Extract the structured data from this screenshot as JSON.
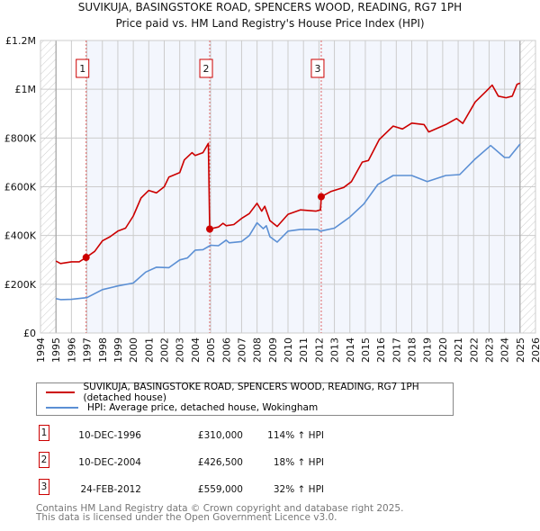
{
  "chart_data": {
    "type": "line",
    "title": "SUVIKUJA, BASINGSTOKE ROAD, SPENCERS WOOD, READING, RG7 1PH",
    "subtitle": "Price paid vs. HM Land Registry's House Price Index (HPI)",
    "xlim": [
      1994,
      2026
    ],
    "ylim": [
      0,
      1200000
    ],
    "x_ticks": [
      "1994",
      "1995",
      "1996",
      "1997",
      "1998",
      "1999",
      "2000",
      "2001",
      "2002",
      "2003",
      "2004",
      "2005",
      "2006",
      "2007",
      "2008",
      "2009",
      "2010",
      "2011",
      "2012",
      "2013",
      "2014",
      "2015",
      "2016",
      "2017",
      "2018",
      "2019",
      "2020",
      "2021",
      "2022",
      "2023",
      "2024",
      "2025",
      "2026"
    ],
    "y_ticks": [
      {
        "value": 0,
        "label": "£0"
      },
      {
        "value": 200000,
        "label": "£200K"
      },
      {
        "value": 400000,
        "label": "£400K"
      },
      {
        "value": 600000,
        "label": "£600K"
      },
      {
        "value": 800000,
        "label": "£800K"
      },
      {
        "value": 1000000,
        "label": "£1M"
      },
      {
        "value": 1200000,
        "label": "£1.2M"
      }
    ],
    "grid": true,
    "series": [
      {
        "name": "SUVIKUJA, BASINGSTOKE ROAD, SPENCERS WOOD, READING, RG7 1PH (detached house)",
        "color": "#cc0000",
        "x": [
          1995.0,
          1995.3,
          1996.0,
          1996.5,
          1996.95,
          1997.5,
          1998.0,
          1998.5,
          1999.0,
          1999.5,
          2000.0,
          2000.5,
          2001.0,
          2001.5,
          2002.0,
          2002.3,
          2003.0,
          2003.3,
          2003.8,
          2004.0,
          2004.5,
          2004.85,
          2004.94,
          2005.5,
          2005.8,
          2006.0,
          2006.5,
          2007.0,
          2007.5,
          2008.0,
          2008.3,
          2008.5,
          2008.83,
          2009.3,
          2010.0,
          2010.8,
          2011.8,
          2012.1,
          2012.15,
          2012.8,
          2013.6,
          2014.1,
          2014.8,
          2015.2,
          2015.9,
          2016.8,
          2017.4,
          2018.0,
          2018.8,
          2019.1,
          2020.2,
          2020.9,
          2021.3,
          2022.1,
          2022.8,
          2023.2,
          2023.6,
          2024.1,
          2024.5,
          2024.8,
          2025.0
        ],
        "y": [
          295000,
          285000,
          292000,
          292000,
          310000,
          335000,
          378000,
          395000,
          418000,
          430000,
          480000,
          554000,
          585000,
          575000,
          600000,
          640000,
          658000,
          710000,
          740000,
          728000,
          740000,
          778000,
          426500,
          435000,
          450000,
          440000,
          445000,
          470000,
          490000,
          532000,
          500000,
          520000,
          461000,
          437000,
          487000,
          505000,
          500000,
          505000,
          559000,
          581000,
          597000,
          621000,
          701000,
          708000,
          794000,
          849000,
          837000,
          861000,
          855000,
          825000,
          855000,
          880000,
          860000,
          948000,
          991000,
          1017000,
          972000,
          965000,
          972000,
          1020000,
          1025000
        ]
      },
      {
        "name": "HPI: Average price, detached house, Wokingham",
        "color": "#5b8fd4",
        "x": [
          1995.0,
          1995.3,
          1996.0,
          1997.0,
          1998.0,
          1999.0,
          2000.0,
          2000.8,
          2001.5,
          2002.3,
          2003.0,
          2003.5,
          2004.0,
          2004.5,
          2005.0,
          2005.5,
          2006.0,
          2006.2,
          2007.0,
          2007.5,
          2008.0,
          2008.4,
          2008.6,
          2008.83,
          2009.3,
          2010.0,
          2010.8,
          2011.9,
          2012.1,
          2013.0,
          2014.0,
          2014.9,
          2015.8,
          2016.8,
          2018.0,
          2019.0,
          2020.2,
          2021.1,
          2022.1,
          2023.1,
          2024.0,
          2024.3,
          2025.0
        ],
        "y": [
          141000,
          137000,
          138000,
          145000,
          178000,
          193000,
          205000,
          250000,
          270000,
          268000,
          300000,
          308000,
          340000,
          342000,
          360000,
          358000,
          381000,
          370000,
          375000,
          400000,
          452000,
          428000,
          440000,
          395000,
          373000,
          418000,
          425000,
          425000,
          418000,
          430000,
          476000,
          529000,
          609000,
          646000,
          646000,
          621000,
          646000,
          650000,
          714000,
          769000,
          720000,
          720000,
          775000
        ]
      }
    ],
    "sales": [
      {
        "id": "1",
        "x": 1996.95,
        "y": 310000,
        "date": "10-DEC-1996",
        "price": "£310,000",
        "hpi": "114% ↑ HPI"
      },
      {
        "id": "2",
        "x": 2004.94,
        "y": 426500,
        "date": "10-DEC-2004",
        "price": "£426,500",
        "hpi": "18% ↑ HPI"
      },
      {
        "id": "3",
        "x": 2012.15,
        "y": 559000,
        "date": "24-FEB-2012",
        "price": "£559,000",
        "hpi": "32% ↑ HPI"
      }
    ],
    "data_range": [
      1995.0,
      2025.0
    ],
    "legend_position": "below"
  },
  "footer": {
    "line1": "Contains HM Land Registry data © Crown copyright and database right 2025.",
    "line2": "This data is licensed under the Open Government Licence v3.0."
  }
}
